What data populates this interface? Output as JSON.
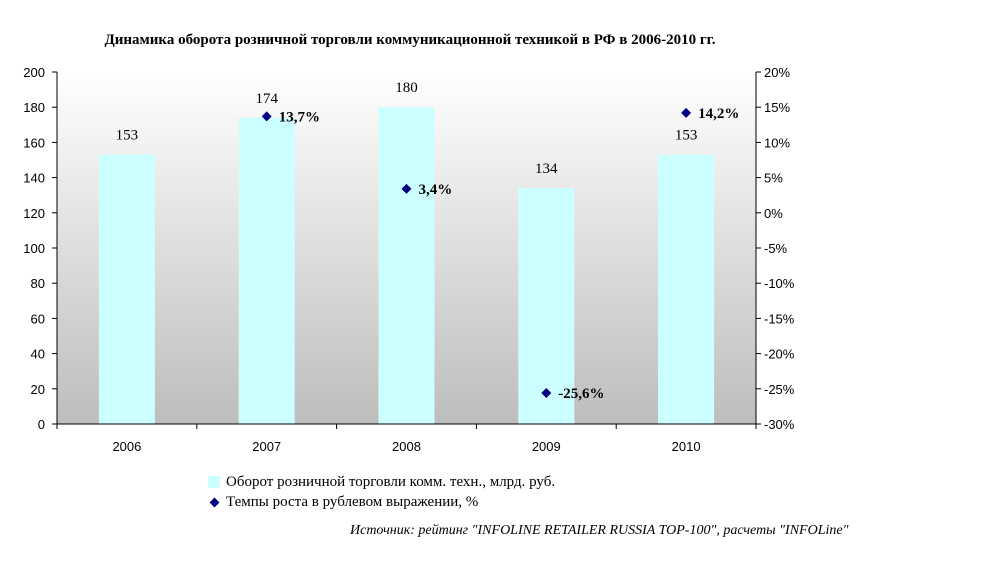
{
  "title": "Динамика оборота розничной торговли коммуникационной техникой в РФ в 2006-2010 гг.",
  "chart_data": {
    "type": "bar",
    "categories": [
      "2006",
      "2007",
      "2008",
      "2009",
      "2010"
    ],
    "series": [
      {
        "name": "Оборот розничной торговли комм. техн., млрд. руб.",
        "type": "bar",
        "axis": "left",
        "values": [
          153,
          174,
          180,
          134,
          153
        ],
        "labels": [
          "153",
          "174",
          "180",
          "134",
          "153"
        ],
        "color": "#ccffff"
      },
      {
        "name": "Темпы роста в рублевом выражении, %",
        "type": "scatter",
        "axis": "right",
        "values": [
          null,
          13.7,
          3.4,
          -25.6,
          14.2
        ],
        "labels": [
          "",
          "13,7%",
          "3,4%",
          "-25,6%",
          "14,2%"
        ],
        "color": "#000080"
      }
    ],
    "y_left": {
      "ylim": [
        0,
        200
      ],
      "ticks": [
        "0",
        "20",
        "40",
        "60",
        "80",
        "100",
        "120",
        "140",
        "160",
        "180",
        "200"
      ]
    },
    "y_right": {
      "ylim": [
        -30,
        20
      ],
      "ticks": [
        "-30%",
        "-25%",
        "-20%",
        "-15%",
        "-10%",
        "-5%",
        "0%",
        "5%",
        "10%",
        "15%",
        "20%"
      ]
    },
    "legend": "bottom",
    "grid": false
  },
  "source": "Источник: рейтинг \"INFOLINE RETAILER RUSSIA TOP-100\", расчеты \"INFOLine\""
}
